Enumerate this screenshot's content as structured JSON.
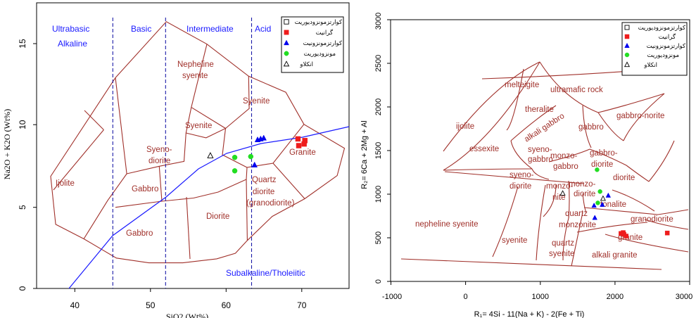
{
  "chart_data": [
    {
      "type": "scatter",
      "xlabel": "SiO2 (Wt%)",
      "ylabel": "Na2O + K2O (Wt%)",
      "xlim": [
        35,
        76
      ],
      "ylim": [
        0,
        17
      ],
      "x_ticks": [
        "40",
        "50",
        "60",
        "70"
      ],
      "y_ticks": [
        "0",
        "5",
        "10",
        "15"
      ],
      "region_labels_blue": [
        "Ultrabasic",
        "Alkaline",
        "Basic",
        "Intermediate",
        "Acid",
        "Subalkaline/Tholeiitic"
      ],
      "region_labels_red": [
        "Nepheline",
        "syenite",
        "Syenite",
        "Syenite",
        "Syeno-",
        "diorite",
        "Ijolite",
        "Gabbro",
        "Gabbro",
        "Diorite",
        "Quartz",
        "diorite",
        "(granodiorite)",
        "Granite"
      ],
      "legend": [
        "کوارتزمونزودیوریت",
        "گرانیت",
        "کوارتزمونزونیت",
        "مونزودیوریت",
        "انکلاو"
      ],
      "series": [
        {
          "name": "کوارتزمونزودیوریت",
          "color": "#000000",
          "marker": "square-open",
          "points": []
        },
        {
          "name": "گرانیت",
          "color": "#ee1c1c",
          "marker": "square",
          "points": [
            [
              69.3,
              8.9
            ],
            [
              70.2,
              8.8
            ],
            [
              70.1,
              8.6
            ],
            [
              69.4,
              8.5
            ]
          ]
        },
        {
          "name": "کوارتزمونزونیت",
          "color": "#0000ee",
          "marker": "triangle",
          "points": [
            [
              64.0,
              8.85
            ],
            [
              64.4,
              8.9
            ],
            [
              64.8,
              8.95
            ],
            [
              63.6,
              7.35
            ]
          ]
        },
        {
          "name": "مونزودیوریت",
          "color": "#22dd22",
          "marker": "circle",
          "points": [
            [
              61.0,
              7.8
            ],
            [
              63.1,
              7.85
            ],
            [
              61.0,
              7.0
            ]
          ]
        },
        {
          "name": "انکلاو",
          "color": "#000000",
          "marker": "triangle-open",
          "points": [
            [
              57.8,
              7.9
            ]
          ]
        }
      ]
    },
    {
      "type": "scatter",
      "xlabel": "R₁= 4Si - 11(Na + K) - 2(Fe + Ti)",
      "ylabel": "R₂= 6Ca + 2Mg + Al",
      "xlim": [
        -1000,
        3000
      ],
      "ylim": [
        0,
        3000
      ],
      "x_ticks": [
        "-1000",
        "0",
        "1000",
        "2000",
        "3000"
      ],
      "y_ticks": [
        "0",
        "500",
        "1000",
        "1500",
        "2000",
        "2500",
        "3000"
      ],
      "field_labels": [
        "melteigite",
        "ultramafic rock",
        "ijolite",
        "theralite",
        "gabbro-norite",
        "alkali gabbro",
        "gabbro",
        "essexite",
        "syeno-",
        "gabbro",
        "monzo-",
        "gabbro",
        "gabbro-",
        "diorite",
        "syeno-",
        "diorite",
        "diorite",
        "monzo-",
        "nite",
        "monzo-",
        "diorite",
        "tonalite",
        "quartz",
        "monzonite",
        "granodiorite",
        "nepheline syenite",
        "syenite",
        "quartz",
        "syenite",
        "granite",
        "alkali granite"
      ],
      "legend": [
        "کوارتزمونزودیوریت",
        "گرانیت",
        "کوارتزمونزونیت",
        "مونزودیوریت",
        "انکلاو"
      ],
      "series": [
        {
          "name": "کوارتزمونزودیوریت",
          "color": "#000000",
          "marker": "square-open",
          "points": []
        },
        {
          "name": "گرانیت",
          "color": "#ee1c1c",
          "marker": "square",
          "points": [
            [
              2080,
              550
            ],
            [
              2120,
              540
            ],
            [
              2150,
              520
            ],
            [
              2110,
              560
            ],
            [
              2700,
              555
            ]
          ]
        },
        {
          "name": "کوارتزمونزونیت",
          "color": "#0000ee",
          "marker": "triangle",
          "points": [
            [
              1730,
              730
            ],
            [
              1720,
              870
            ],
            [
              1830,
              880
            ],
            [
              1910,
              985
            ]
          ]
        },
        {
          "name": "مونزودیوریت",
          "color": "#22dd22",
          "marker": "circle",
          "points": [
            [
              1760,
              1280
            ],
            [
              1800,
              1030
            ],
            [
              1770,
              900
            ]
          ]
        },
        {
          "name": "انکلاو",
          "color": "#000000",
          "marker": "triangle-open",
          "points": [
            [
              1300,
              1010
            ],
            [
              1840,
              950
            ]
          ]
        }
      ]
    }
  ]
}
